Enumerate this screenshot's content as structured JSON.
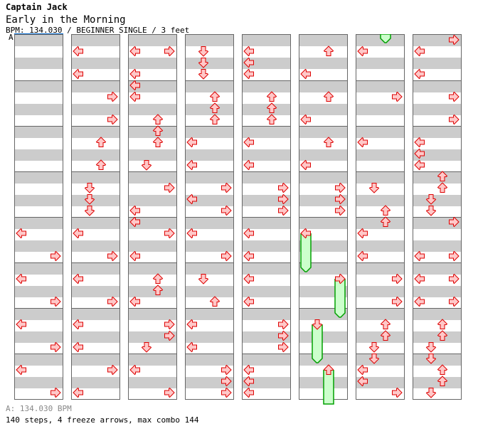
{
  "header": {
    "artist": "Captain Jack",
    "title": "Early in the Morning",
    "info": "BPM: 134.030 / BEGINNER SINGLE / 3 feet"
  },
  "marker": "A",
  "footer": {
    "bpm": "A: 134.030 BPM",
    "stats": "140 steps, 4 freeze arrows, max combo 144"
  },
  "colors": {
    "arrow_fill": "#ffc8c8",
    "arrow_stroke": "#dd0000",
    "freeze_fill": "#ccffcc",
    "freeze_stroke": "#00a000",
    "marker_line": "#0066cc"
  },
  "chart": {
    "columns": 8,
    "measures_per_column": 8,
    "notes": [
      [
        0,
        4,
        "L",
        1
      ],
      [
        0,
        4,
        "R",
        3
      ],
      [
        0,
        5,
        "L",
        1
      ],
      [
        0,
        5,
        "R",
        3
      ],
      [
        0,
        6,
        "L",
        1
      ],
      [
        0,
        6,
        "R",
        3
      ],
      [
        0,
        7,
        "L",
        1
      ],
      [
        0,
        7,
        "R",
        3
      ],
      [
        1,
        0,
        "L",
        1
      ],
      [
        1,
        0,
        "L",
        3
      ],
      [
        1,
        1,
        "R",
        1
      ],
      [
        1,
        1,
        "R",
        3
      ],
      [
        1,
        2,
        "U",
        1
      ],
      [
        1,
        2,
        "U",
        3
      ],
      [
        1,
        3,
        "D",
        1
      ],
      [
        1,
        3,
        "D",
        2
      ],
      [
        1,
        3,
        "D",
        3
      ],
      [
        1,
        4,
        "L",
        1
      ],
      [
        1,
        4,
        "R",
        3
      ],
      [
        1,
        5,
        "L",
        1
      ],
      [
        1,
        5,
        "R",
        3
      ],
      [
        1,
        6,
        "L",
        1
      ],
      [
        1,
        6,
        "L",
        3
      ],
      [
        1,
        7,
        "R",
        1
      ],
      [
        1,
        7,
        "L",
        3
      ],
      [
        2,
        0,
        "L",
        1
      ],
      [
        2,
        0,
        "R",
        1
      ],
      [
        2,
        0,
        "L",
        3
      ],
      [
        2,
        1,
        "L",
        0
      ],
      [
        2,
        1,
        "L",
        1
      ],
      [
        2,
        1,
        "U",
        3
      ],
      [
        2,
        2,
        "U",
        0
      ],
      [
        2,
        2,
        "U",
        1
      ],
      [
        2,
        2,
        "D",
        3
      ],
      [
        2,
        3,
        "R",
        1
      ],
      [
        2,
        3,
        "L",
        3
      ],
      [
        2,
        4,
        "L",
        0
      ],
      [
        2,
        4,
        "R",
        1
      ],
      [
        2,
        4,
        "L",
        3
      ],
      [
        2,
        5,
        "U",
        1
      ],
      [
        2,
        5,
        "U",
        2
      ],
      [
        2,
        5,
        "L",
        3
      ],
      [
        2,
        6,
        "R",
        1
      ],
      [
        2,
        6,
        "R",
        2
      ],
      [
        2,
        6,
        "D",
        3
      ],
      [
        2,
        7,
        "L",
        1
      ],
      [
        2,
        7,
        "R",
        3
      ],
      [
        3,
        0,
        "D",
        1
      ],
      [
        3,
        0,
        "D",
        2
      ],
      [
        3,
        0,
        "D",
        3
      ],
      [
        3,
        1,
        "U",
        1
      ],
      [
        3,
        1,
        "U",
        2
      ],
      [
        3,
        1,
        "U",
        3
      ],
      [
        3,
        2,
        "L",
        1
      ],
      [
        3,
        2,
        "L",
        3
      ],
      [
        3,
        3,
        "R",
        1
      ],
      [
        3,
        3,
        "L",
        2
      ],
      [
        3,
        3,
        "R",
        3
      ],
      [
        3,
        4,
        "L",
        1
      ],
      [
        3,
        4,
        "R",
        3
      ],
      [
        3,
        5,
        "D",
        1
      ],
      [
        3,
        5,
        "U",
        3
      ],
      [
        3,
        6,
        "L",
        1
      ],
      [
        3,
        6,
        "L",
        3
      ],
      [
        3,
        7,
        "R",
        1
      ],
      [
        3,
        7,
        "R",
        2
      ],
      [
        3,
        7,
        "R",
        3
      ],
      [
        4,
        0,
        "L",
        1
      ],
      [
        4,
        0,
        "L",
        2
      ],
      [
        4,
        0,
        "L",
        3
      ],
      [
        4,
        1,
        "U",
        1
      ],
      [
        4,
        1,
        "U",
        2
      ],
      [
        4,
        1,
        "U",
        3
      ],
      [
        4,
        2,
        "L",
        1
      ],
      [
        4,
        2,
        "L",
        3
      ],
      [
        4,
        3,
        "R",
        1
      ],
      [
        4,
        3,
        "R",
        2
      ],
      [
        4,
        3,
        "R",
        3
      ],
      [
        4,
        4,
        "L",
        1
      ],
      [
        4,
        4,
        "L",
        3
      ],
      [
        4,
        5,
        "L",
        1
      ],
      [
        4,
        5,
        "L",
        3
      ],
      [
        4,
        6,
        "R",
        1
      ],
      [
        4,
        6,
        "R",
        2
      ],
      [
        4,
        6,
        "R",
        3
      ],
      [
        4,
        7,
        "L",
        1
      ],
      [
        4,
        7,
        "L",
        2
      ],
      [
        4,
        7,
        "L",
        3
      ],
      [
        5,
        0,
        "U",
        1
      ],
      [
        5,
        0,
        "L",
        3
      ],
      [
        5,
        1,
        "U",
        1
      ],
      [
        5,
        1,
        "L",
        3
      ],
      [
        5,
        2,
        "U",
        1
      ],
      [
        5,
        2,
        "L",
        3
      ],
      [
        5,
        3,
        "R",
        1
      ],
      [
        5,
        3,
        "R",
        2
      ],
      [
        5,
        3,
        "R",
        3
      ],
      [
        6,
        0,
        "L",
        1
      ],
      [
        6,
        1,
        "R",
        1
      ],
      [
        6,
        2,
        "L",
        1
      ],
      [
        6,
        3,
        "D",
        1
      ],
      [
        6,
        3,
        "U",
        3
      ],
      [
        6,
        4,
        "U",
        0
      ],
      [
        6,
        4,
        "L",
        1
      ],
      [
        6,
        4,
        "L",
        3
      ],
      [
        6,
        5,
        "R",
        1
      ],
      [
        6,
        5,
        "R",
        3
      ],
      [
        6,
        6,
        "U",
        1
      ],
      [
        6,
        6,
        "U",
        2
      ],
      [
        6,
        6,
        "D",
        3
      ],
      [
        6,
        7,
        "D",
        0
      ],
      [
        6,
        7,
        "L",
        1
      ],
      [
        6,
        7,
        "L",
        2
      ],
      [
        6,
        7,
        "R",
        3
      ],
      [
        7,
        0,
        "R",
        0
      ],
      [
        7,
        0,
        "L",
        1
      ],
      [
        7,
        0,
        "L",
        3
      ],
      [
        7,
        1,
        "R",
        1
      ],
      [
        7,
        1,
        "R",
        3
      ],
      [
        7,
        2,
        "L",
        1
      ],
      [
        7,
        2,
        "L",
        2
      ],
      [
        7,
        2,
        "L",
        3
      ],
      [
        7,
        3,
        "U",
        0
      ],
      [
        7,
        3,
        "U",
        1
      ],
      [
        7,
        3,
        "D",
        2
      ],
      [
        7,
        3,
        "D",
        3
      ],
      [
        7,
        4,
        "R",
        0
      ],
      [
        7,
        4,
        "L",
        3
      ],
      [
        7,
        4,
        "R",
        3
      ],
      [
        7,
        5,
        "L",
        1
      ],
      [
        7,
        5,
        "R",
        1
      ],
      [
        7,
        5,
        "L",
        3
      ],
      [
        7,
        5,
        "R",
        3
      ],
      [
        7,
        6,
        "U",
        1
      ],
      [
        7,
        6,
        "U",
        2
      ],
      [
        7,
        6,
        "D",
        3
      ],
      [
        7,
        7,
        "D",
        0
      ],
      [
        7,
        7,
        "U",
        1
      ],
      [
        7,
        7,
        "U",
        2
      ],
      [
        7,
        7,
        "D",
        3
      ]
    ],
    "freezes": [
      [
        5,
        4,
        "L",
        1,
        3
      ],
      [
        5,
        5,
        "R",
        1,
        3
      ],
      [
        5,
        6,
        "D",
        1,
        3
      ],
      [
        5,
        7,
        "U",
        1,
        3
      ]
    ]
  }
}
